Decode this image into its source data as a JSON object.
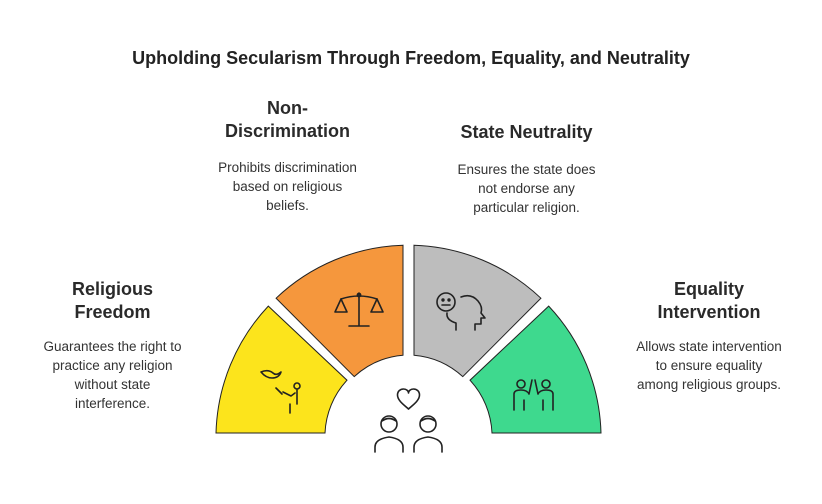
{
  "title": "Upholding Secularism Through Freedom, Equality, and Neutrality",
  "sections": [
    {
      "heading": [
        "Religious",
        "Freedom"
      ],
      "body": [
        "Guarantees the right to",
        "practice any religion",
        "without state",
        "interference."
      ],
      "color": "#fce41c",
      "icon": "dove-hand-icon"
    },
    {
      "heading": [
        "Non-",
        "Discrimination"
      ],
      "body": [
        "Prohibits discrimination",
        "based on religious",
        "beliefs."
      ],
      "color": "#f5973d",
      "icon": "balance-scale-icon"
    },
    {
      "heading": [
        "State Neutrality"
      ],
      "body": [
        "Ensures the state does",
        "not endorse any",
        "particular religion."
      ],
      "color": "#bdbdbd",
      "icon": "neutral-face-head-icon"
    },
    {
      "heading": [
        "Equality",
        "Intervention"
      ],
      "body": [
        "Allows state intervention",
        "to ensure equality",
        "among religious groups."
      ],
      "color": "#3ed98e",
      "icon": "high-five-icon"
    }
  ],
  "center_icon": "people-heart-icon"
}
